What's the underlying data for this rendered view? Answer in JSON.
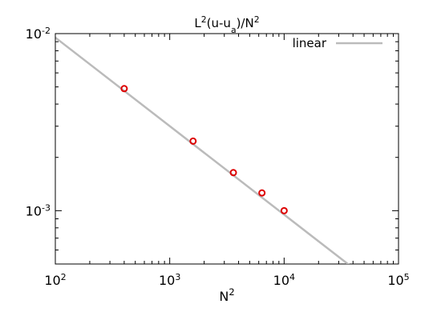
{
  "chart_data": {
    "type": "line",
    "title": [
      {
        "text": "L"
      },
      {
        "text": "2",
        "shift": "sup"
      },
      {
        "text": "(u-u"
      },
      {
        "text": "a",
        "shift": "sub"
      },
      {
        "text": ")/N"
      },
      {
        "text": "2",
        "shift": "sup"
      }
    ],
    "x_label": [
      {
        "text": "N"
      },
      {
        "text": "2",
        "shift": "sup"
      }
    ],
    "xscale": "log",
    "yscale": "log",
    "xlim": [
      100,
      100000
    ],
    "ylim": [
      0.0005,
      0.01
    ],
    "xticks": [
      {
        "value": 100,
        "label": "10",
        "exponent": "2"
      },
      {
        "value": 1000,
        "label": "10",
        "exponent": "3"
      },
      {
        "value": 10000,
        "label": "10",
        "exponent": "4"
      },
      {
        "value": 100000,
        "label": "10",
        "exponent": "5"
      }
    ],
    "yticks": [
      {
        "value": 0.001,
        "label": "10",
        "exponent": "-3"
      },
      {
        "value": 0.01,
        "label": "10",
        "exponent": "-2"
      }
    ],
    "legend": "top-right",
    "series": [
      {
        "name": "linear",
        "color": "#bbbbbb",
        "style": "line",
        "x": [
          100,
          40000
        ],
        "values": [
          0.0095,
          0.000475
        ]
      },
      {
        "color": "#dd0000",
        "style": "points",
        "x": [
          400,
          1600,
          3600,
          6400,
          10000
        ],
        "values": [
          0.00489,
          0.00247,
          0.00164,
          0.00126,
          0.001
        ]
      }
    ]
  }
}
